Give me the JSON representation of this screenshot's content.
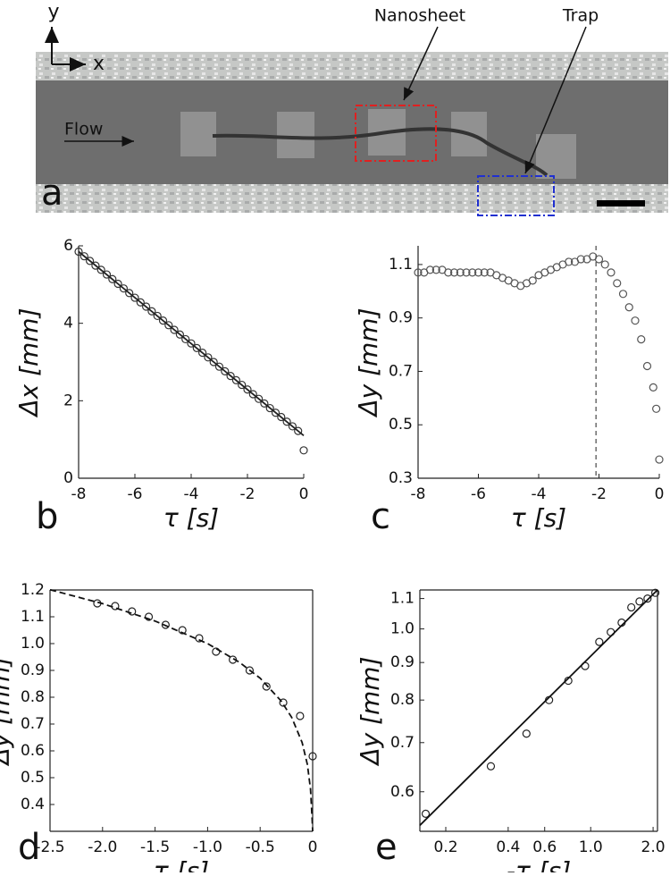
{
  "image_panel": {
    "label": "a",
    "annotations": [
      "Nanosheet",
      "Trap",
      "Flow"
    ],
    "axis_x": "x",
    "axis_y": "y"
  },
  "chart_data": [
    {
      "type": "scatter",
      "panel_label": "b",
      "xlabel": "τ [s]",
      "ylabel": "Δx [mm]",
      "xlim": [
        -8,
        0
      ],
      "ylim": [
        0,
        6
      ],
      "xticks": [
        -8,
        -6,
        -4,
        -2,
        0
      ],
      "yticks": [
        0,
        2,
        4,
        6
      ],
      "log": false,
      "box": false,
      "series": [
        {
          "style": "markers",
          "color": "#333333",
          "x": [
            -8,
            -7.8,
            -7.6,
            -7.4,
            -7.2,
            -7,
            -6.8,
            -6.6,
            -6.4,
            -6.2,
            -6,
            -5.8,
            -5.6,
            -5.4,
            -5.2,
            -5,
            -4.8,
            -4.6,
            -4.4,
            -4.2,
            -4,
            -3.8,
            -3.6,
            -3.4,
            -3.2,
            -3,
            -2.8,
            -2.6,
            -2.4,
            -2.2,
            -2,
            -1.8,
            -1.6,
            -1.4,
            -1.2,
            -1,
            -0.8,
            -0.6,
            -0.4,
            -0.2,
            0
          ],
          "values": [
            5.85,
            5.73,
            5.61,
            5.49,
            5.38,
            5.26,
            5.14,
            5.02,
            4.9,
            4.78,
            4.66,
            4.54,
            4.43,
            4.31,
            4.19,
            4.07,
            3.95,
            3.83,
            3.71,
            3.59,
            3.48,
            3.36,
            3.24,
            3.12,
            3.0,
            2.88,
            2.76,
            2.64,
            2.53,
            2.41,
            2.29,
            2.17,
            2.05,
            1.93,
            1.81,
            1.69,
            1.58,
            1.46,
            1.34,
            1.22,
            0.72
          ]
        },
        {
          "style": "line",
          "color": "#222222",
          "x": [
            -8,
            0
          ],
          "values": [
            5.85,
            1.1
          ]
        }
      ]
    },
    {
      "type": "scatter",
      "panel_label": "c",
      "xlabel": "τ [s]",
      "ylabel": "Δy [mm]",
      "xlim": [
        -8,
        0
      ],
      "ylim": [
        0.3,
        1.17
      ],
      "xticks": [
        -8,
        -6,
        -4,
        -2,
        0
      ],
      "yticks": [
        0.3,
        0.5,
        0.7,
        0.9,
        1.1
      ],
      "log": false,
      "box": false,
      "vline": -2.1,
      "series": [
        {
          "style": "markers",
          "color": "#555555",
          "x": [
            -8,
            -7.8,
            -7.6,
            -7.4,
            -7.2,
            -7,
            -6.8,
            -6.6,
            -6.4,
            -6.2,
            -6,
            -5.8,
            -5.6,
            -5.4,
            -5.2,
            -5,
            -4.8,
            -4.6,
            -4.4,
            -4.2,
            -4,
            -3.8,
            -3.6,
            -3.4,
            -3.2,
            -3,
            -2.8,
            -2.6,
            -2.4,
            -2.2,
            -2,
            -1.8,
            -1.6,
            -1.4,
            -1.2,
            -1,
            -0.8,
            -0.6,
            -0.4,
            -0.2,
            -0.1,
            0
          ],
          "values": [
            1.07,
            1.07,
            1.08,
            1.08,
            1.08,
            1.07,
            1.07,
            1.07,
            1.07,
            1.07,
            1.07,
            1.07,
            1.07,
            1.06,
            1.05,
            1.04,
            1.03,
            1.02,
            1.03,
            1.04,
            1.06,
            1.07,
            1.08,
            1.09,
            1.1,
            1.11,
            1.11,
            1.12,
            1.12,
            1.13,
            1.12,
            1.1,
            1.07,
            1.03,
            0.99,
            0.94,
            0.89,
            0.82,
            0.72,
            0.64,
            0.56,
            0.37
          ]
        }
      ]
    },
    {
      "type": "scatter",
      "panel_label": "d",
      "xlabel": "τ [s]",
      "ylabel": "Δy [mm]",
      "xlim": [
        -2.5,
        0
      ],
      "ylim": [
        0.3,
        1.2
      ],
      "xticks": [
        -2.5,
        {
          "value": -2,
          "label": "-2.0"
        },
        -1.5,
        {
          "value": -1,
          "label": "-1.0"
        },
        -0.5,
        0
      ],
      "yticks": [
        0.4,
        0.5,
        0.6,
        0.7,
        0.8,
        0.9,
        {
          "value": 1,
          "label": "1.0"
        },
        1.1,
        1.2
      ],
      "log": false,
      "box": true,
      "series": [
        {
          "style": "markers",
          "color": "#222222",
          "x": [
            -2.05,
            -1.88,
            -1.72,
            -1.56,
            -1.4,
            -1.24,
            -1.08,
            -0.92,
            -0.76,
            -0.6,
            -0.44,
            -0.28,
            -0.12,
            0
          ],
          "values": [
            1.15,
            1.14,
            1.12,
            1.1,
            1.07,
            1.05,
            1.02,
            0.97,
            0.94,
            0.9,
            0.84,
            0.78,
            0.73,
            0.58
          ]
        },
        {
          "style": "dashed",
          "color": "#111111",
          "x": [
            -2.5,
            -2,
            -1.5,
            -1,
            -0.7,
            -0.5,
            -0.3,
            -0.2,
            -0.1,
            -0.05,
            -0.02,
            -0.005,
            0
          ],
          "values": [
            1.201,
            1.149,
            1.084,
            1,
            0.931,
            0.871,
            0.786,
            0.725,
            0.631,
            0.549,
            0.457,
            0.346,
            0.3
          ]
        }
      ]
    },
    {
      "type": "scatter",
      "panel_label": "e",
      "xlabel": "-τ [s]",
      "ylabel": "Δy [mm]",
      "xlim": [
        0.15,
        2.1
      ],
      "ylim": [
        0.53,
        1.13
      ],
      "xticks": [
        0.2,
        0.4,
        0.6,
        {
          "value": 1,
          "label": "1.0"
        },
        {
          "value": 2,
          "label": "2.0"
        }
      ],
      "yticks": [
        0.6,
        0.7,
        0.8,
        0.9,
        {
          "value": 1,
          "label": "1.0"
        },
        1.1
      ],
      "log": true,
      "box": true,
      "series": [
        {
          "style": "markers",
          "color": "#222222",
          "x": [
            0.16,
            0.33,
            0.49,
            0.63,
            0.78,
            0.94,
            1.1,
            1.25,
            1.41,
            1.57,
            1.72,
            1.88,
            2.05
          ],
          "values": [
            0.56,
            0.65,
            0.72,
            0.8,
            0.85,
            0.89,
            0.96,
            0.99,
            1.02,
            1.07,
            1.09,
            1.1,
            1.12
          ]
        },
        {
          "style": "line",
          "color": "#111111",
          "x": [
            0.15,
            2.1
          ],
          "values": [
            0.54,
            1.13
          ]
        }
      ]
    }
  ]
}
